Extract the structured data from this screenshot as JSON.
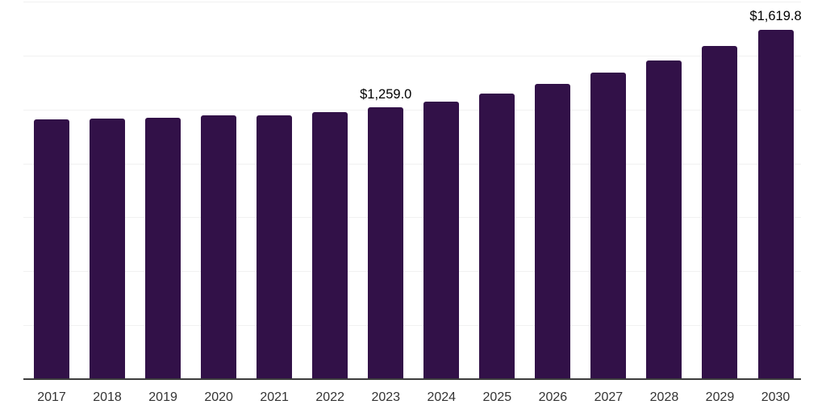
{
  "chart_data": {
    "type": "bar",
    "title": "",
    "xlabel": "",
    "ylabel": "",
    "categories": [
      "2017",
      "2018",
      "2019",
      "2020",
      "2021",
      "2022",
      "2023",
      "2024",
      "2025",
      "2026",
      "2027",
      "2028",
      "2029",
      "2030"
    ],
    "values": [
      1205,
      1206,
      1213,
      1221,
      1223,
      1236,
      1259.0,
      1288,
      1325,
      1370,
      1421,
      1477,
      1543,
      1619.8
    ],
    "value_labels": [
      "",
      "",
      "",
      "",
      "",
      "",
      "$1,259.0",
      "",
      "",
      "",
      "",
      "",
      "",
      "$1,619.8"
    ],
    "ylim": [
      0,
      1750
    ],
    "gridline_step": 250,
    "grid": "horizontal-only",
    "legend": "none",
    "y_tick_labels_visible": false,
    "colors": {
      "bar": "#321148",
      "gridline": "#f1f1f1",
      "axis_line": "#3d3d3d",
      "x_tick_label": "#333333",
      "data_label": "#000000",
      "background": "#ffffff"
    }
  }
}
